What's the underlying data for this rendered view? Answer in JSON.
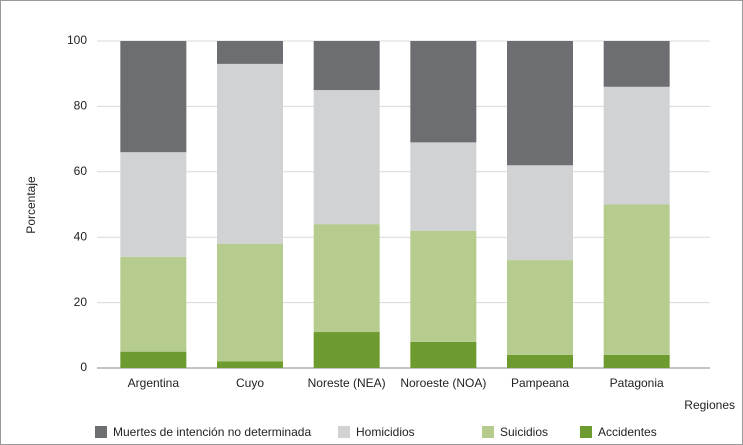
{
  "chart_data": {
    "type": "stacked_bar",
    "xlabel": "Regiones",
    "ylabel": "Porcentaje",
    "categories": [
      "Argentina",
      "Cuyo",
      "Noreste (NEA)",
      "Noroeste (NOA)",
      "Pampeana",
      "Patagonia"
    ],
    "series": [
      {
        "name": "Muertes de intención no determinada",
        "color": "#6d6e71",
        "values": [
          34,
          7,
          15,
          31,
          38,
          14
        ]
      },
      {
        "name": "Homicidios",
        "color": "#d1d2d4",
        "values": [
          32,
          55,
          41,
          27,
          29,
          36
        ]
      },
      {
        "name": "Suicidios",
        "color": "#b5cc8e",
        "values": [
          29,
          36,
          33,
          34,
          29,
          46
        ]
      },
      {
        "name": "Accidentes",
        "color": "#6e9b2f",
        "values": [
          5,
          2,
          11,
          8,
          4,
          4
        ]
      }
    ],
    "ylim": [
      0,
      100
    ],
    "yticks": [
      0,
      20,
      40,
      60,
      80,
      100
    ],
    "grid": true
  }
}
